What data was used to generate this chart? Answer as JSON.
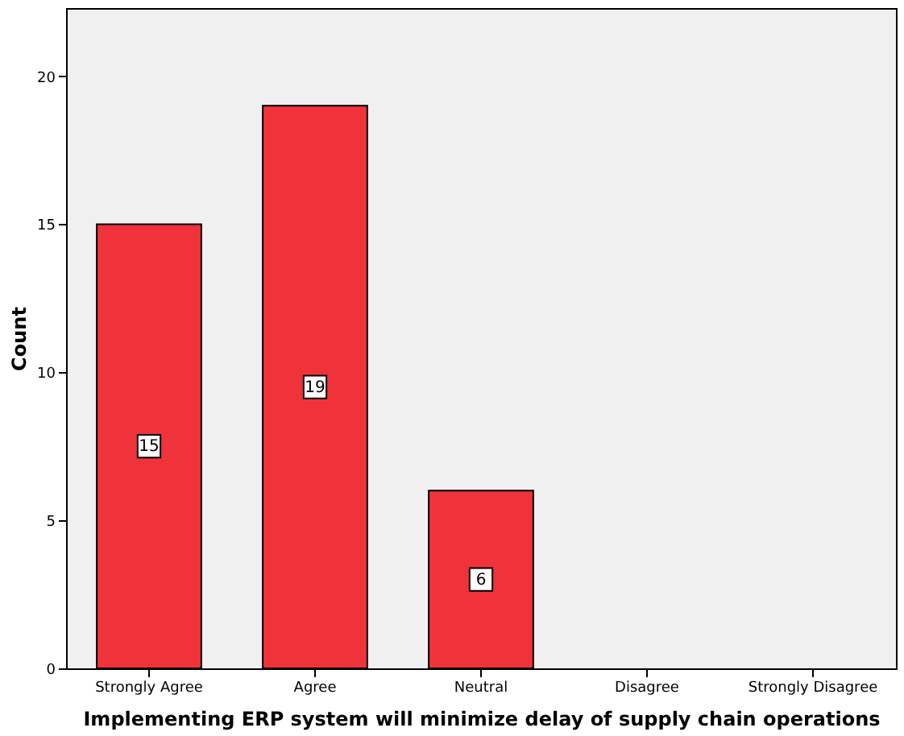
{
  "chart_data": {
    "type": "bar",
    "xlabel": "Implementing ERP system will minimize delay of supply chain operations",
    "ylabel": "Count",
    "categories": [
      "Strongly Agree",
      "Agree",
      "Neutral",
      "Disagree",
      "Strongly Disagree"
    ],
    "values": [
      15,
      19,
      6,
      null,
      null
    ],
    "value_labels": [
      "15",
      "19",
      "6",
      null,
      null
    ],
    "color": "#f0333b",
    "ylim": [
      0,
      22.3
    ],
    "yticks": [
      0,
      5,
      10,
      15,
      20
    ],
    "grid": false
  }
}
